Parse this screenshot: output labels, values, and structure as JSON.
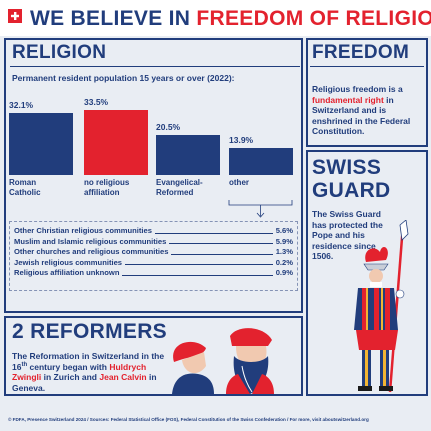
{
  "header": {
    "title_part1": "WE BELIEVE IN",
    "title_part2": "FREEDOM OF RELIGION"
  },
  "chart_data": {
    "type": "bar",
    "title": "RELIGION",
    "subtitle": "Permanent resident population 15 years or over (2022):",
    "categories": [
      "Roman Catholic",
      "no religious affiliation",
      "Evangelical-Reformed",
      "other"
    ],
    "values": [
      32.1,
      33.5,
      20.5,
      13.9
    ],
    "value_labels": [
      "32.1%",
      "33.5%",
      "20.5%",
      "13.9%"
    ],
    "colors": [
      "#213d7c",
      "#e3222e",
      "#213d7c",
      "#213d7c"
    ]
  },
  "other_breakdown": [
    {
      "label": "Other Christian religious communities",
      "value": "5.6%"
    },
    {
      "label": "Muslim and Islamic religious communities",
      "value": "5.9%"
    },
    {
      "label": "Other churches and religious communities",
      "value": "1.3%"
    },
    {
      "label": "Jewish religious communities",
      "value": "0.2%"
    },
    {
      "label": "Religious affiliation unknown",
      "value": "0.9%"
    }
  ],
  "freedom": {
    "title": "FREEDOM",
    "text": [
      "Religious freedom is a ",
      "fundamental right",
      " in Switzerland and is enshrined in the Federal Constitution."
    ]
  },
  "swiss_guard": {
    "title": "SWISS GUARD",
    "text": "The Swiss Guard has protected the Pope and his residence since 1506."
  },
  "reformers": {
    "title": "2 REFORMERS",
    "text": [
      "The Reformation in Switzerland in the 16",
      "th",
      " century began with ",
      "Huldrych Zwingli",
      " in Zurich and ",
      "Jean Calvin",
      " in Geneva."
    ]
  },
  "footer": "© FDFA, Presence Switzerland 2024 / Sources: Federal Statistical Office (FOS), Federal Constitution of the Swiss Confederation / For more, visit aboutswitzerland.org"
}
